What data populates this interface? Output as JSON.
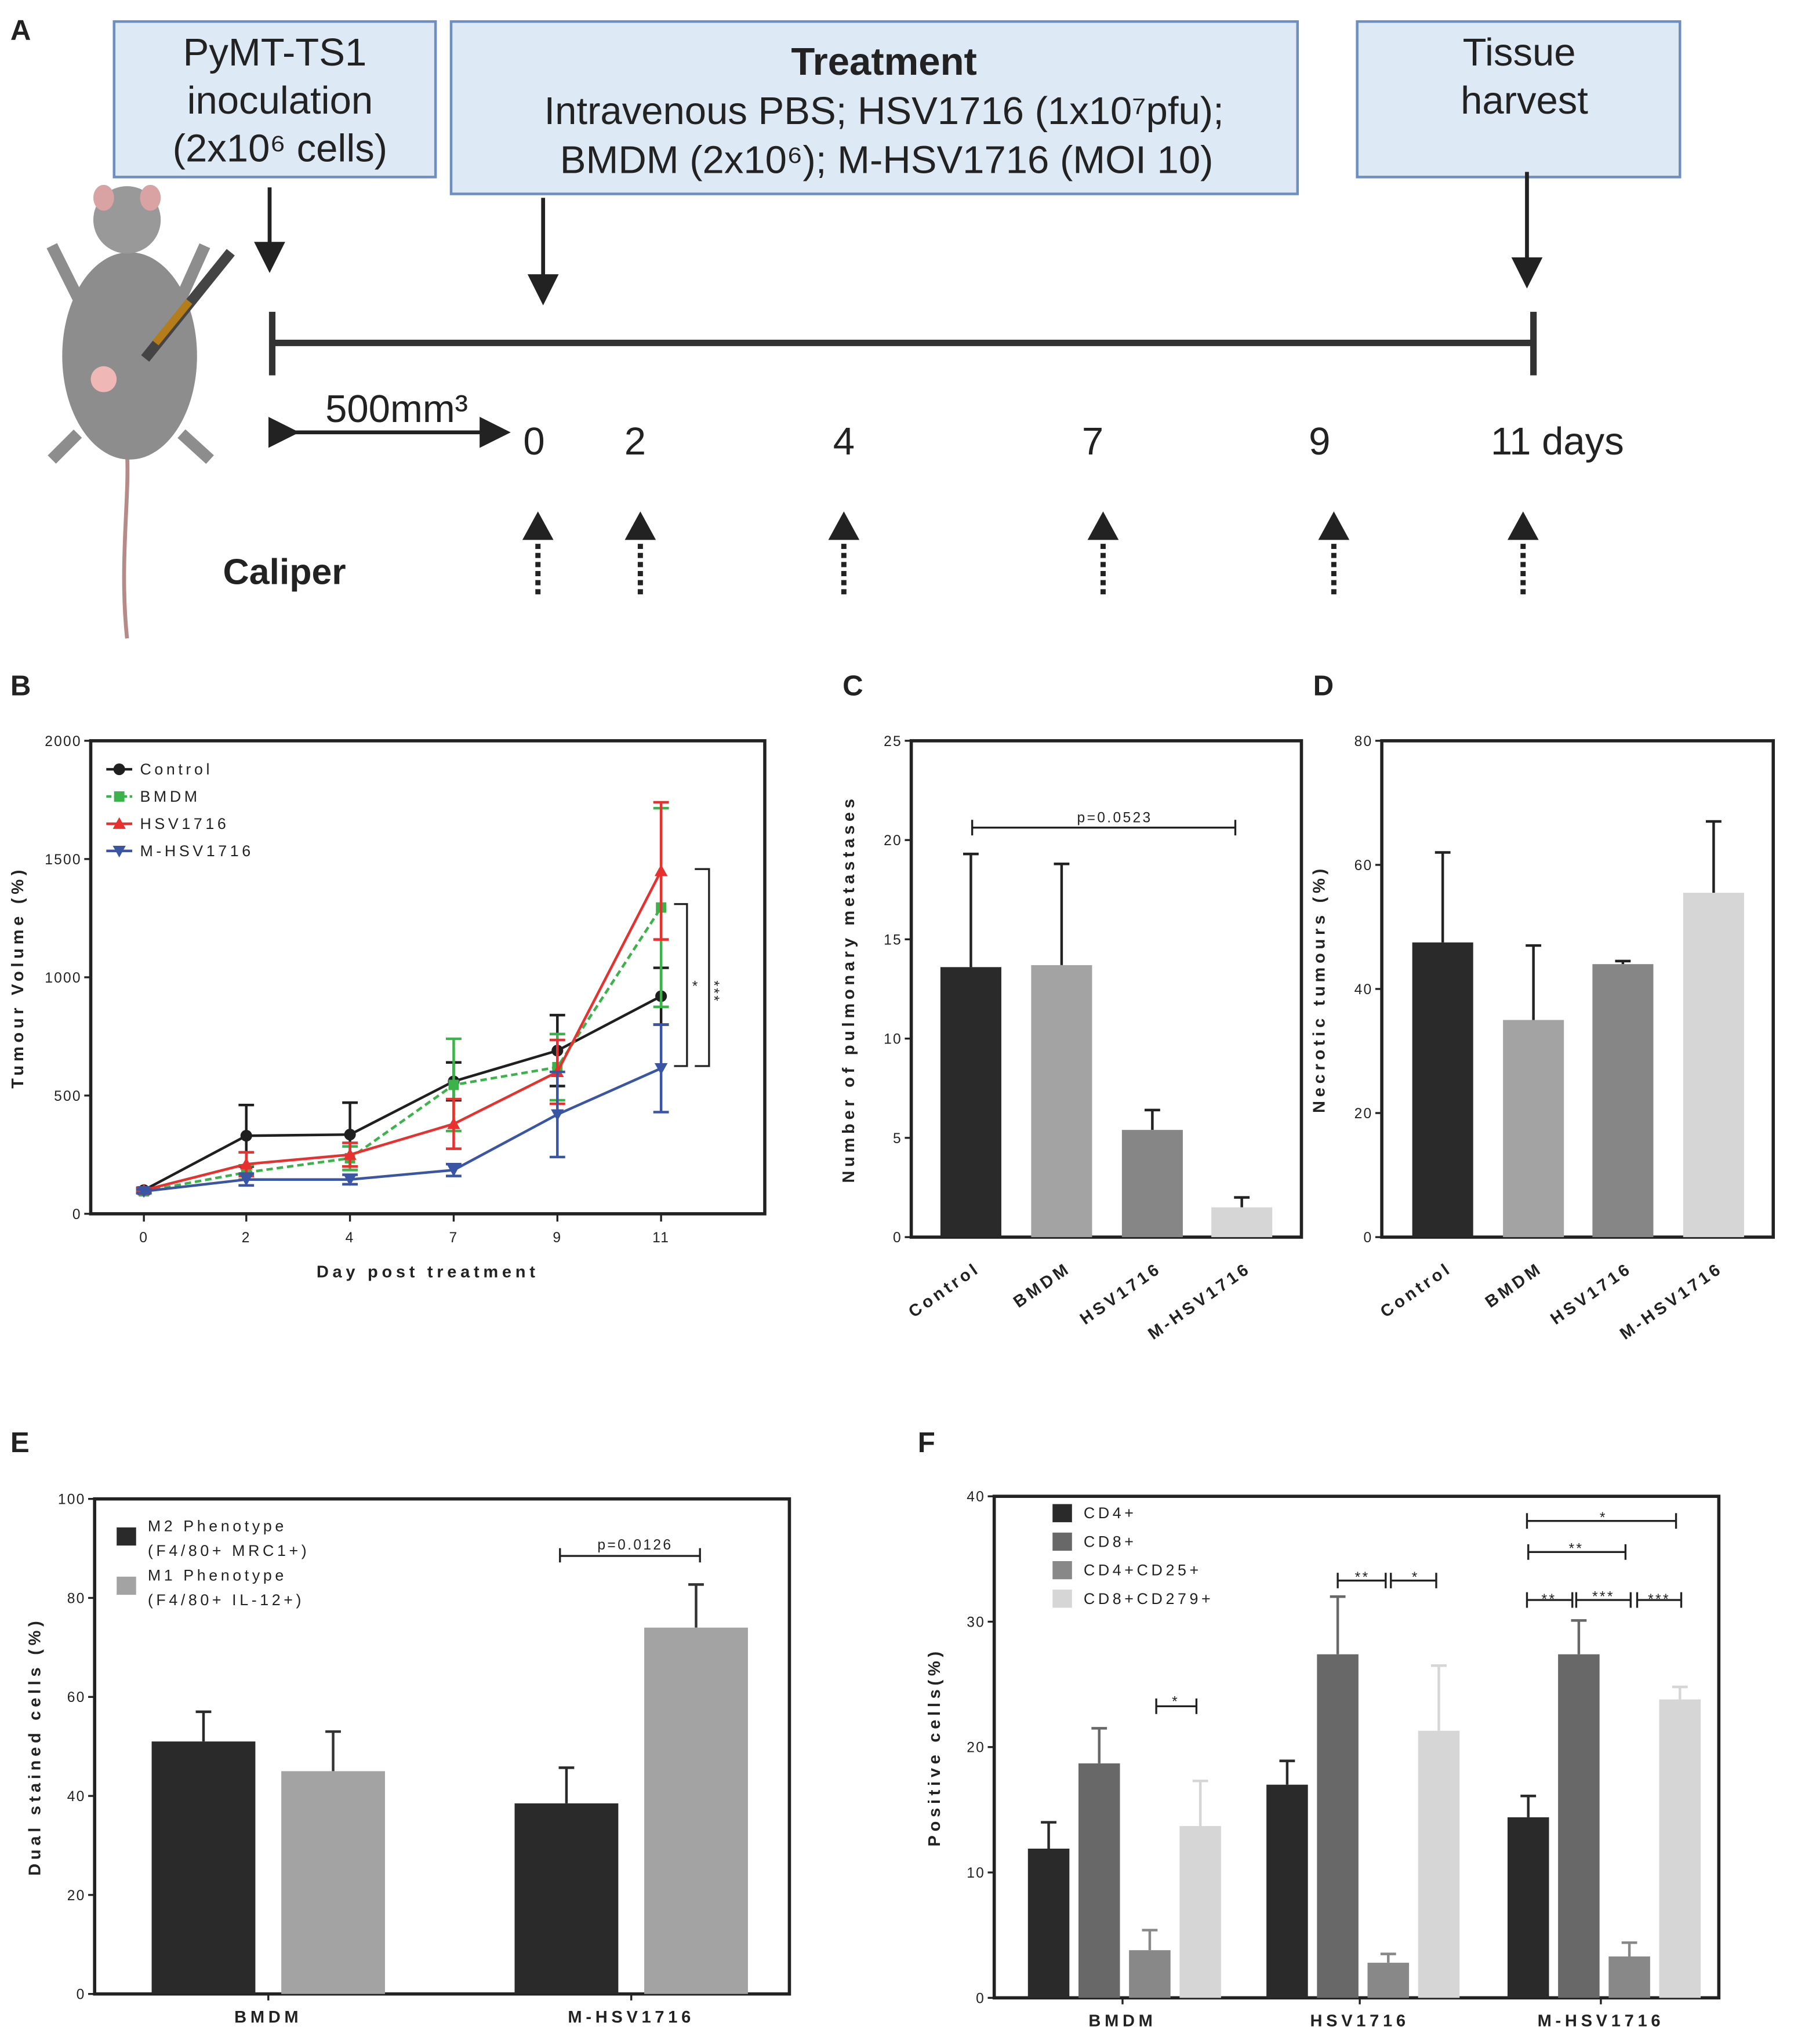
{
  "panel_letters": {
    "a": "A",
    "b": "B",
    "c": "C",
    "d": "D",
    "e": "E",
    "f": "F"
  },
  "panel_a": {
    "box1": [
      "PyMT-TS1",
      "inoculation",
      "(2x10⁶ cells)"
    ],
    "box2_title": "Treatment",
    "box2": [
      "Intravenous PBS; HSV1716 (1x10⁷pfu);",
      "BMDM (2x10⁶); M-HSV1716 (MOI 10)"
    ],
    "box3": [
      "Tissue",
      "harvest"
    ],
    "volume_label": "500mm³",
    "days": [
      "0",
      "2",
      "4",
      "7",
      "9",
      "11 days"
    ],
    "caliper_label": "Caliper",
    "colors": {
      "box_fill": "#dde9f5",
      "box_border": "#6c8fc0"
    }
  },
  "chart_data": [
    {
      "id": "B",
      "type": "line",
      "xlabel": "Day post treatment",
      "ylabel": "Tumour Volume (%)",
      "categories": [
        "0",
        "2",
        "4",
        "7",
        "9",
        "11"
      ],
      "ylim": [
        0,
        2000
      ],
      "yticks": [
        0,
        500,
        1000,
        1500,
        2000
      ],
      "legend_position": "top-left",
      "series": [
        {
          "name": "Control",
          "color": "#1f1f1f",
          "marker": "circle",
          "dashed": false,
          "values": [
            100,
            330,
            335,
            560,
            690,
            920
          ],
          "err": [
            10,
            130,
            135,
            80,
            150,
            120
          ]
        },
        {
          "name": "BMDM",
          "color": "#3bb34a",
          "marker": "square",
          "dashed": true,
          "values": [
            95,
            175,
            235,
            545,
            620,
            1295
          ],
          "err": [
            8,
            30,
            50,
            195,
            140,
            420
          ]
        },
        {
          "name": "HSV1716",
          "color": "#e8312f",
          "marker": "triangle-up",
          "dashed": false,
          "values": [
            100,
            210,
            250,
            380,
            600,
            1450
          ],
          "err": [
            8,
            50,
            50,
            105,
            135,
            290
          ]
        },
        {
          "name": "M-HSV1716",
          "color": "#3a55a4",
          "marker": "triangle-down",
          "dashed": false,
          "values": [
            95,
            145,
            145,
            185,
            420,
            615
          ],
          "err": [
            8,
            25,
            20,
            25,
            180,
            185
          ]
        }
      ],
      "annotations": [
        "*",
        "***"
      ]
    },
    {
      "id": "C",
      "type": "bar",
      "ylabel": "Number of pulmonary metastases",
      "categories": [
        "Control",
        "BMDM",
        "HSV1716",
        "M-HSV1716"
      ],
      "values": [
        13.6,
        13.7,
        5.4,
        1.5
      ],
      "err": [
        5.7,
        5.1,
        1.0,
        0.5
      ],
      "colors": [
        "#2a2a2a",
        "#a3a3a3",
        "#868686",
        "#d6d6d6"
      ],
      "ylim": [
        0,
        25
      ],
      "yticks": [
        0,
        5,
        10,
        15,
        20,
        25
      ],
      "annotations": [
        "p=0.0523"
      ]
    },
    {
      "id": "D",
      "type": "bar",
      "ylabel": "Necrotic tumours (%)",
      "categories": [
        "Control",
        "BMDM",
        "HSV1716",
        "M-HSV1716"
      ],
      "values": [
        47.5,
        35,
        44,
        55.5
      ],
      "err": [
        14.5,
        12,
        0.5,
        11.5
      ],
      "colors": [
        "#2a2a2a",
        "#a3a3a3",
        "#868686",
        "#d6d6d6"
      ],
      "ylim": [
        0,
        80
      ],
      "yticks": [
        0,
        20,
        40,
        60,
        80
      ]
    },
    {
      "id": "E",
      "type": "bar",
      "ylabel": "Dual stained cells (%)",
      "categories": [
        "BMDM",
        "M-HSV1716"
      ],
      "ylim": [
        0,
        100
      ],
      "yticks": [
        0,
        20,
        40,
        60,
        80,
        100
      ],
      "legend_position": "top-left",
      "series": [
        {
          "name": "M2 Phenotype",
          "sub": "(F4/80+ MRC1+)",
          "color": "#2a2a2a",
          "values": [
            51,
            38.5
          ],
          "err": [
            6,
            7.2
          ]
        },
        {
          "name": "M1 Phenotype",
          "sub": " (F4/80+ IL-12+)",
          "color": "#a3a3a3",
          "values": [
            45,
            74
          ],
          "err": [
            8,
            8.7
          ]
        }
      ],
      "annotations": [
        "p=0.0126"
      ]
    },
    {
      "id": "F",
      "type": "bar",
      "ylabel": "Positive cells(%)",
      "categories": [
        "BMDM",
        "HSV1716",
        "M-HSV1716"
      ],
      "ylim": [
        0,
        40
      ],
      "yticks": [
        0,
        10,
        20,
        30,
        40
      ],
      "legend_position": "top-left",
      "series": [
        {
          "name": "CD4+",
          "color": "#2a2a2a",
          "values": [
            11.9,
            17,
            14.4
          ],
          "err": [
            2.1,
            1.9,
            1.7
          ]
        },
        {
          "name": "CD8+",
          "color": "#686868",
          "values": [
            18.7,
            27.4,
            27.4
          ],
          "err": [
            2.8,
            4.6,
            2.7
          ]
        },
        {
          "name": "CD4+CD25+",
          "color": "#888888",
          "values": [
            3.8,
            2.8,
            3.3
          ],
          "err": [
            1.6,
            0.7,
            1.1
          ]
        },
        {
          "name": "CD8+CD279+",
          "color": "#d6d6d6",
          "values": [
            13.7,
            21.3,
            23.8
          ],
          "err": [
            3.6,
            5.2,
            1.0
          ]
        }
      ],
      "annotations": [
        "*",
        "**",
        "*",
        "*",
        "**",
        "**",
        "***",
        "***"
      ]
    }
  ]
}
